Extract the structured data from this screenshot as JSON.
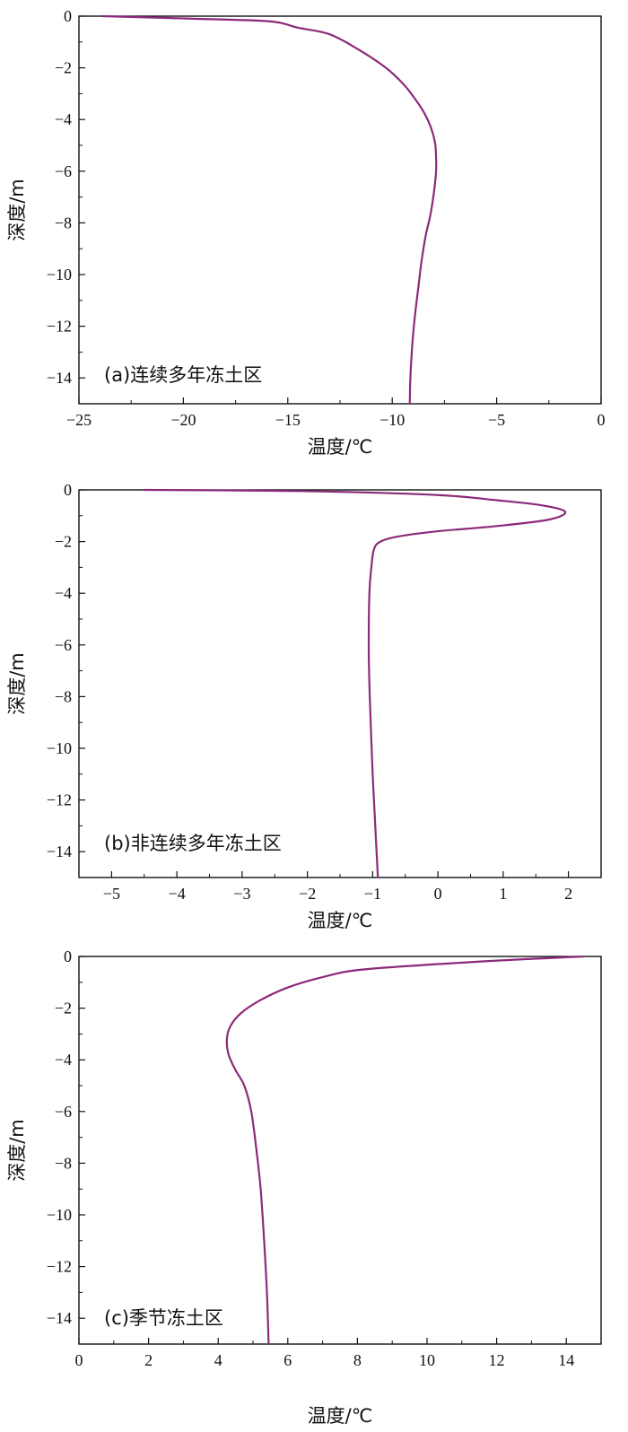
{
  "chart_data": [
    {
      "type": "line",
      "title": "",
      "annotation": "(a)连续多年冻土区",
      "xlabel": "温度/℃",
      "ylabel": "深度/m",
      "xlim": [
        -25,
        0
      ],
      "ylim": [
        -15,
        0
      ],
      "xticks": [
        -25,
        -20,
        -15,
        -10,
        -5,
        0
      ],
      "xtick_labels": [
        "−25",
        "−20",
        "−15",
        "−10",
        "−5",
        "0"
      ],
      "yticks": [
        0,
        -2,
        -4,
        -6,
        -8,
        -10,
        -12,
        -14
      ],
      "ytick_labels": [
        "0",
        "−2",
        "−4",
        "−6",
        "−8",
        "−10",
        "−12",
        "−14"
      ],
      "grid": false,
      "line_color": "#8b2a7a",
      "series": [
        {
          "x": [
            -23.9,
            -19.5,
            -15.9,
            -14.5,
            -13.0,
            -11.6,
            -10.3,
            -9.5,
            -9.0,
            -8.5,
            -8.15,
            -7.95,
            -7.9,
            -7.9,
            -7.97,
            -8.07,
            -8.2,
            -8.4,
            -8.6,
            -8.75,
            -8.9,
            -9.02,
            -9.1,
            -9.14,
            -9.16
          ],
          "y": [
            0,
            -0.1,
            -0.2,
            -0.45,
            -0.7,
            -1.3,
            -2.0,
            -2.6,
            -3.1,
            -3.7,
            -4.3,
            -4.9,
            -5.5,
            -6.0,
            -6.6,
            -7.2,
            -7.8,
            -8.5,
            -9.5,
            -10.5,
            -11.5,
            -12.5,
            -13.5,
            -14.2,
            -15
          ]
        }
      ]
    },
    {
      "type": "line",
      "title": "",
      "annotation": "(b)非连续多年冻土区",
      "xlabel": "温度/℃",
      "ylabel": "深度/m",
      "xlim": [
        -5.5,
        2.5
      ],
      "ylim": [
        -15,
        0
      ],
      "xticks": [
        -5,
        -4,
        -3,
        -2,
        -1,
        0,
        1,
        2
      ],
      "xtick_labels": [
        "−5",
        "−4",
        "−3",
        "−2",
        "−1",
        "0",
        "1",
        "2"
      ],
      "yticks": [
        0,
        -2,
        -4,
        -6,
        -8,
        -10,
        -12,
        -14
      ],
      "ytick_labels": [
        "0",
        "−2",
        "−4",
        "−6",
        "−8",
        "−10",
        "−12",
        "−14"
      ],
      "grid": false,
      "line_color": "#8b2a7a",
      "series": [
        {
          "x": [
            -4.5,
            -2.0,
            0.0,
            0.9,
            1.6,
            1.95,
            1.7,
            0.9,
            0.0,
            -0.6,
            -0.88,
            -0.98,
            -1.02,
            -1.05,
            -1.06,
            -1.05,
            -1.03,
            -1.0,
            -0.97,
            -0.94,
            -0.92
          ],
          "y": [
            0,
            -0.05,
            -0.2,
            -0.4,
            -0.6,
            -0.85,
            -1.15,
            -1.4,
            -1.6,
            -1.8,
            -2.0,
            -2.3,
            -3.0,
            -4.0,
            -6.0,
            -7.5,
            -9.0,
            -11.0,
            -12.5,
            -14.0,
            -15
          ]
        }
      ]
    },
    {
      "type": "line",
      "title": "",
      "annotation": "(c)季节冻土区",
      "xlabel": "温度/℃",
      "ylabel": "深度/m",
      "xlim": [
        0,
        15
      ],
      "ylim": [
        -15,
        0
      ],
      "xticks": [
        0,
        2,
        4,
        6,
        8,
        10,
        12,
        14
      ],
      "xtick_labels": [
        "0",
        "2",
        "4",
        "6",
        "8",
        "10",
        "12",
        "14"
      ],
      "yticks": [
        0,
        -2,
        -4,
        -6,
        -8,
        -10,
        -12,
        -14
      ],
      "ytick_labels": [
        "0",
        "−2",
        "−4",
        "−6",
        "−8",
        "−10",
        "−12",
        "−14"
      ],
      "grid": false,
      "line_color": "#8b2a7a",
      "series": [
        {
          "x": [
            14.5,
            11.5,
            8.2,
            7.0,
            6.0,
            5.2,
            4.65,
            4.35,
            4.25,
            4.3,
            4.5,
            4.75,
            4.95,
            5.1,
            5.22,
            5.32,
            5.4,
            5.45
          ],
          "y": [
            0,
            -0.2,
            -0.5,
            -0.8,
            -1.2,
            -1.7,
            -2.2,
            -2.7,
            -3.2,
            -3.8,
            -4.4,
            -5.0,
            -6.0,
            -7.5,
            -9.0,
            -11.0,
            -13.0,
            -15
          ]
        }
      ]
    }
  ]
}
